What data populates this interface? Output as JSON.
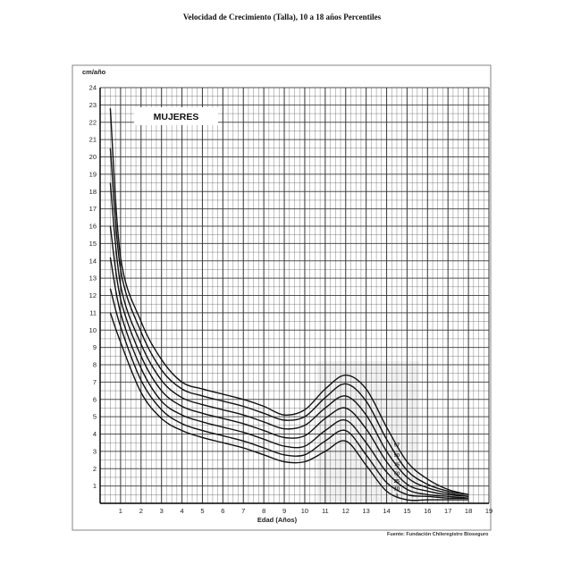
{
  "page": {
    "title": "Velocidad de Crecimiento (Talla), 10 a 18 años Percentiles"
  },
  "chart_data": {
    "type": "line",
    "ylabel": "cm/año",
    "xlabel": "Edad (Años)",
    "xlim": [
      0,
      19
    ],
    "ylim": [
      0,
      24
    ],
    "x_ticks": [
      1,
      2,
      3,
      4,
      5,
      6,
      7,
      8,
      9,
      10,
      11,
      12,
      13,
      14,
      15,
      16,
      17,
      18,
      19
    ],
    "y_ticks": [
      1,
      2,
      3,
      4,
      5,
      6,
      7,
      8,
      9,
      10,
      11,
      12,
      13,
      14,
      15,
      16,
      17,
      18,
      19,
      20,
      21,
      22,
      23,
      24
    ],
    "grid": true,
    "annotation": "MUJERES",
    "source": "Fuente: Fundación Chileregistro Bioseguro",
    "series": [
      {
        "label": "97",
        "x": [
          0.5,
          1,
          2,
          3,
          4,
          5,
          6,
          7,
          8,
          9,
          10,
          11,
          12,
          13,
          14,
          15,
          16,
          17,
          18
        ],
        "y": [
          22.8,
          14.2,
          10.5,
          8.3,
          7.0,
          6.6,
          6.3,
          6.0,
          5.6,
          5.1,
          5.4,
          6.6,
          7.4,
          6.6,
          4.4,
          2.4,
          1.4,
          0.8,
          0.5
        ]
      },
      {
        "label": "90",
        "x": [
          0.5,
          1,
          2,
          3,
          4,
          5,
          6,
          7,
          8,
          9,
          10,
          11,
          12,
          13,
          14,
          15,
          16,
          17,
          18
        ],
        "y": [
          20.5,
          13.5,
          9.9,
          7.7,
          6.6,
          6.2,
          5.9,
          5.6,
          5.2,
          4.8,
          5.0,
          6.1,
          6.9,
          5.9,
          3.7,
          1.9,
          1.1,
          0.7,
          0.5
        ]
      },
      {
        "label": "75",
        "x": [
          0.5,
          1,
          2,
          3,
          4,
          5,
          6,
          7,
          8,
          9,
          10,
          11,
          12,
          13,
          14,
          15,
          16,
          17,
          18
        ],
        "y": [
          18.5,
          12.6,
          9.2,
          7.1,
          6.1,
          5.7,
          5.4,
          5.1,
          4.7,
          4.3,
          4.5,
          5.5,
          6.2,
          5.1,
          3.0,
          1.5,
          0.9,
          0.6,
          0.4
        ]
      },
      {
        "label": "50",
        "x": [
          0.5,
          1,
          2,
          3,
          4,
          5,
          6,
          7,
          8,
          9,
          10,
          11,
          12,
          13,
          14,
          15,
          16,
          17,
          18
        ],
        "y": [
          16.0,
          11.8,
          8.5,
          6.5,
          5.6,
          5.2,
          4.9,
          4.6,
          4.2,
          3.8,
          3.9,
          4.9,
          5.5,
          4.3,
          2.4,
          1.1,
          0.7,
          0.5,
          0.4
        ]
      },
      {
        "label": "25",
        "x": [
          0.5,
          1,
          2,
          3,
          4,
          5,
          6,
          7,
          8,
          9,
          10,
          11,
          12,
          13,
          14,
          15,
          16,
          17,
          18
        ],
        "y": [
          14.2,
          11.0,
          7.8,
          5.9,
          5.1,
          4.7,
          4.4,
          4.1,
          3.7,
          3.3,
          3.3,
          4.2,
          4.8,
          3.5,
          1.8,
          0.8,
          0.5,
          0.4,
          0.3
        ]
      },
      {
        "label": "10",
        "x": [
          0.5,
          1,
          2,
          3,
          4,
          5,
          6,
          7,
          8,
          9,
          10,
          11,
          12,
          13,
          14,
          15,
          16,
          17,
          18
        ],
        "y": [
          12.4,
          10.2,
          7.1,
          5.4,
          4.6,
          4.2,
          3.9,
          3.6,
          3.2,
          2.8,
          2.8,
          3.6,
          4.2,
          2.8,
          1.2,
          0.5,
          0.4,
          0.3,
          0.3
        ]
      },
      {
        "label": "3",
        "x": [
          0.5,
          1,
          2,
          3,
          4,
          5,
          6,
          7,
          8,
          9,
          10,
          11,
          12,
          13,
          14,
          15,
          16,
          17,
          18
        ],
        "y": [
          11.0,
          9.3,
          6.4,
          4.9,
          4.2,
          3.8,
          3.5,
          3.2,
          2.8,
          2.4,
          2.4,
          3.0,
          3.6,
          2.2,
          0.7,
          0.2,
          0.2,
          0.2,
          0.2
        ]
      }
    ],
    "colors": {
      "line": "#111111",
      "grid": "#333333",
      "highlight": "#d8d8d8"
    }
  }
}
